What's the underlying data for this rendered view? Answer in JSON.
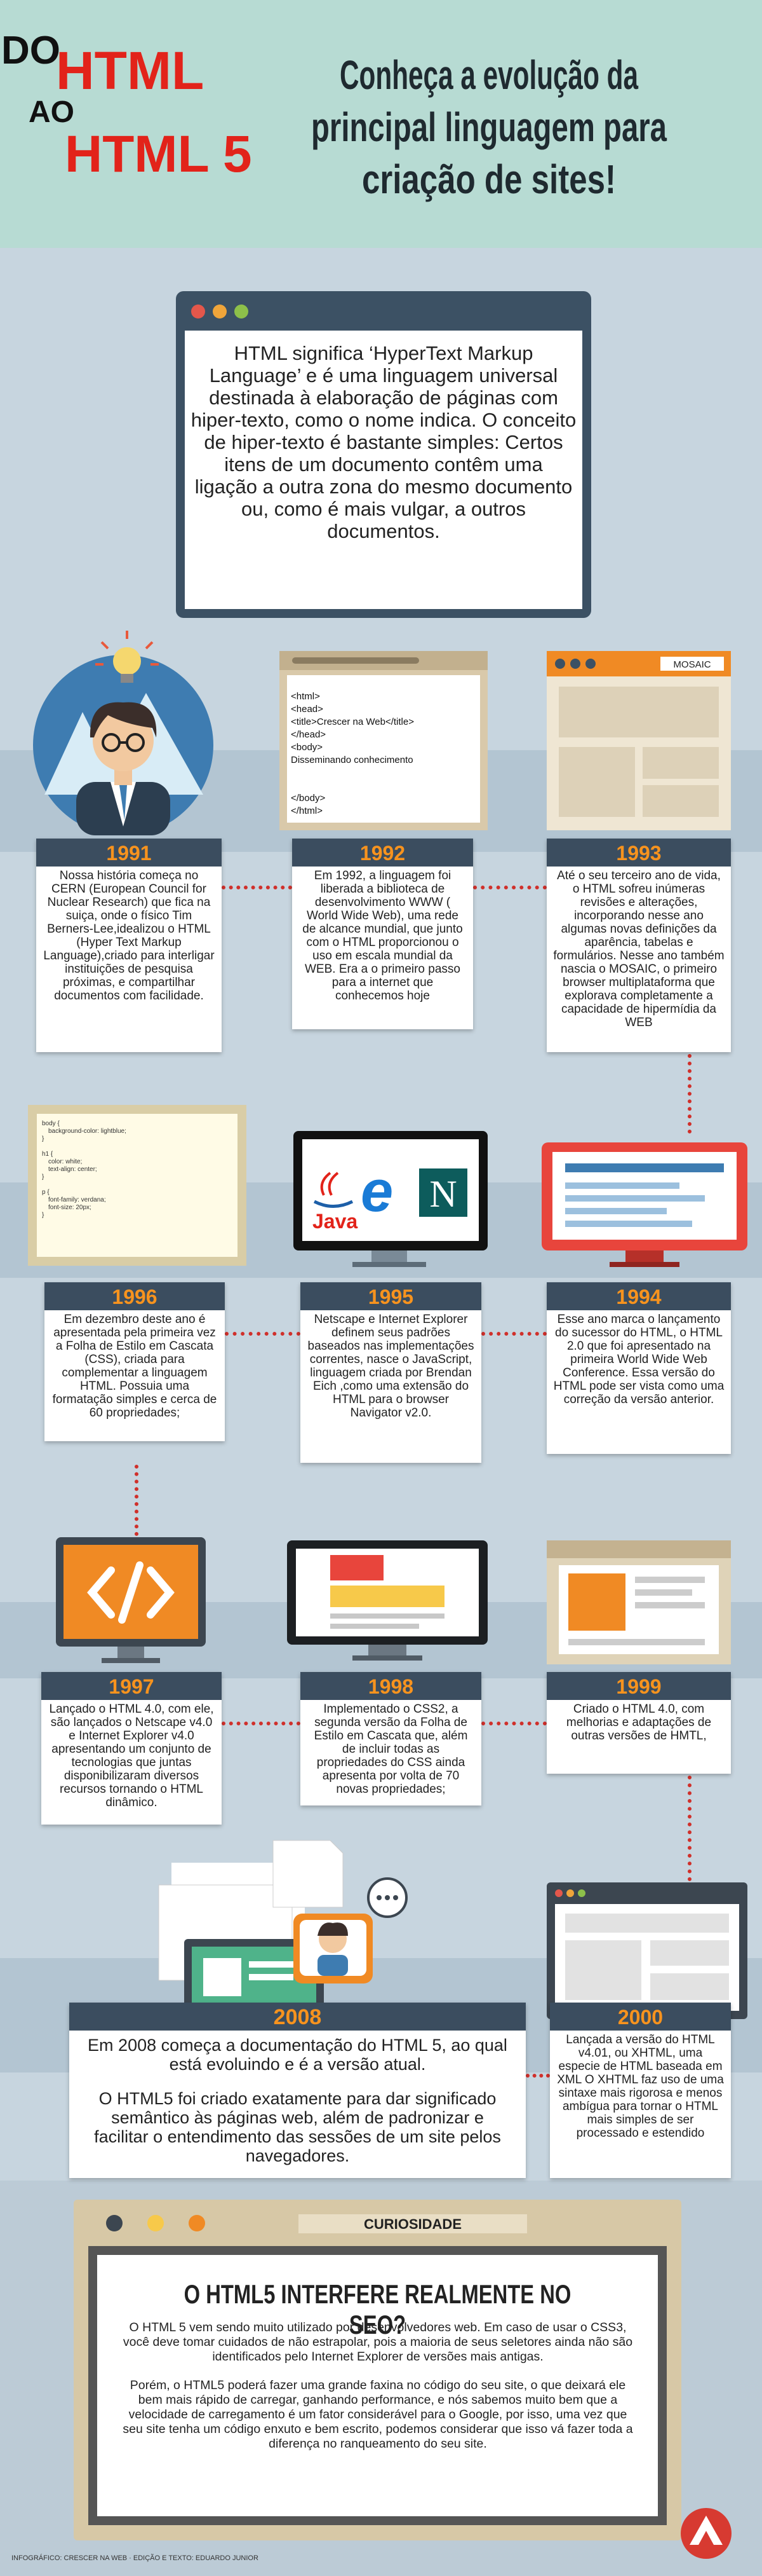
{
  "header": {
    "do": "DO",
    "html": "HTML",
    "ao": "AO",
    "html5": "HTML 5",
    "title_lines": [
      "Conheça a evolução da",
      "principal linguagem para",
      "criação de sites!"
    ]
  },
  "intro": {
    "text": "HTML significa ‘HyperText Markup Language’ e é uma linguagem universal destinada à elaboração de páginas com hiper-texto, como o nome indica. O conceito de hiper-texto é bastante simples: Certos itens de um documento contêm uma ligação a outra zona do mesmo documento ou, como é mais vulgar, a outros documentos."
  },
  "illustrations": {
    "code_1992": [
      "<html>",
      "<head>",
      "<title>Crescer na Web</title>",
      "</head>",
      "<body>",
      "Disseminando conhecimento",
      "</body>",
      "</html>"
    ],
    "mosaic": "MOSAIC",
    "css_1996": [
      "body {",
      "background-color: lightblue;",
      "}",
      "h1 {",
      "color: white;",
      "text-align: center;",
      "}",
      "p {",
      "font-family: verdana;",
      "font-size: 20px;",
      "}"
    ],
    "logos_1995": [
      "Java",
      "e",
      "N"
    ]
  },
  "timeline": [
    {
      "year": "1991",
      "paragraphs": [
        "Nossa história começa no CERN (European Council for Nuclear Research) que fica na suiça, onde o físico Tim Berners-Lee,idealizou o HTML (Hyper Text Markup Language),criado para interligar instituições de pesquisa próximas, e compartilhar documentos com facilidade."
      ]
    },
    {
      "year": "1992",
      "paragraphs": [
        "Em 1992, a linguagem foi liberada a biblioteca de desenvolvimento WWW ( World Wide Web), uma rede de alcance mundial, que junto com o HTML proporcionou o uso em escala mundial da WEB. Era a o primeiro passo para a internet que conhecemos hoje"
      ]
    },
    {
      "year": "1993",
      "paragraphs": [
        "Até o seu terceiro ano de vida, o HTML sofreu inúmeras revisões e alterações, incorporando nesse ano algumas novas definições da aparência, tabelas e formulários. Nesse ano também nascia o MOSAIC, o primeiro browser multiplataforma que explorava completamente a capacidade de hipermídia da WEB"
      ]
    },
    {
      "year": "1996",
      "paragraphs": [
        "Em dezembro deste ano é apresentada pela primeira vez a Folha de Estilo em Cascata (CSS), criada para complementar a linguagem HTML. Possuia uma formatação simples e cerca de 60 propriedades;"
      ]
    },
    {
      "year": "1995",
      "paragraphs": [
        "Netscape e Internet Explorer definem seus padrões baseados nas implementações correntes, nasce o JavaScript, linguagem criada por Brendan Eich ,como uma extensão do HTML para o browser Navigator v2.0."
      ]
    },
    {
      "year": "1994",
      "paragraphs": [
        "Esse ano marca o lançamento do sucessor do HTML, o HTML 2.0 que foi apresentado na primeira World Wide Web Conference. Essa versão do HTML pode ser vista como uma correção da versão anterior."
      ]
    },
    {
      "year": "1997",
      "paragraphs": [
        "Lançado o HTML 4.0, com ele, são lançados o Netscape v4.0 e Internet Explorer v4.0 apresentando um conjunto de tecnologias que juntas disponibilizaram diversos recursos tornando o HTML dinâmico."
      ]
    },
    {
      "year": "1998",
      "paragraphs": [
        "Implementado o CSS2, a segunda versão da Folha de Estilo em Cascata que, além de incluir todas as propriedades do CSS ainda apresenta por volta de 70 novas propriedades;"
      ]
    },
    {
      "year": "1999",
      "paragraphs": [
        "Criado o HTML 4.0, com melhorias e adaptações de outras versões de HMTL,"
      ]
    },
    {
      "year": "2008",
      "paragraphs": [
        "Em 2008 começa a documentação do HTML 5, ao qual está evoluindo e é a versão atual.",
        "O HTML5 foi criado exatamente para dar significado semântico às páginas web, além de padronizar e facilitar o entendimento das sessões de um site pelos navegadores."
      ]
    },
    {
      "year": "2000",
      "paragraphs": [
        "Lançada a versão do HTML v4.01, ou XHTML, uma especie de HTML baseada em XML O XHTML faz uso de uma sintaxe mais rigorosa e menos ambígua para tornar o HTML mais simples de ser processado e estendido"
      ]
    }
  ],
  "curiosity": {
    "label": "CURIOSIDADE",
    "title": "O HTML5 INTERFERE REALMENTE NO SEO?",
    "paragraphs": [
      "O HTML 5 vem sendo muito utilizado por desenvolvedores web. Em caso de usar o CSS3, você deve tomar cuidados de não estrapolar, pois a maioria de seus seletores ainda não são identificados pelo Internet Explorer de versões mais antigas.",
      "Porém, o HTML5 poderá fazer uma grande faxina no código do seu site, o que deixará ele bem mais rápido de carregar, ganhando performance, e nós sabemos muito bem que a velocidade de carregamento é um fator considerável para o Google, por isso, uma vez que seu site tenha um código enxuto e bem escrito, podemos considerar que isso vá fazer toda a diferença no ranqueamento do seu site."
    ]
  },
  "footer": {
    "credits": "INFOGRÁFICO: CRESCER NA WEB · EDIÇÃO E TEXTO: EDUARDO JUNIOR"
  }
}
